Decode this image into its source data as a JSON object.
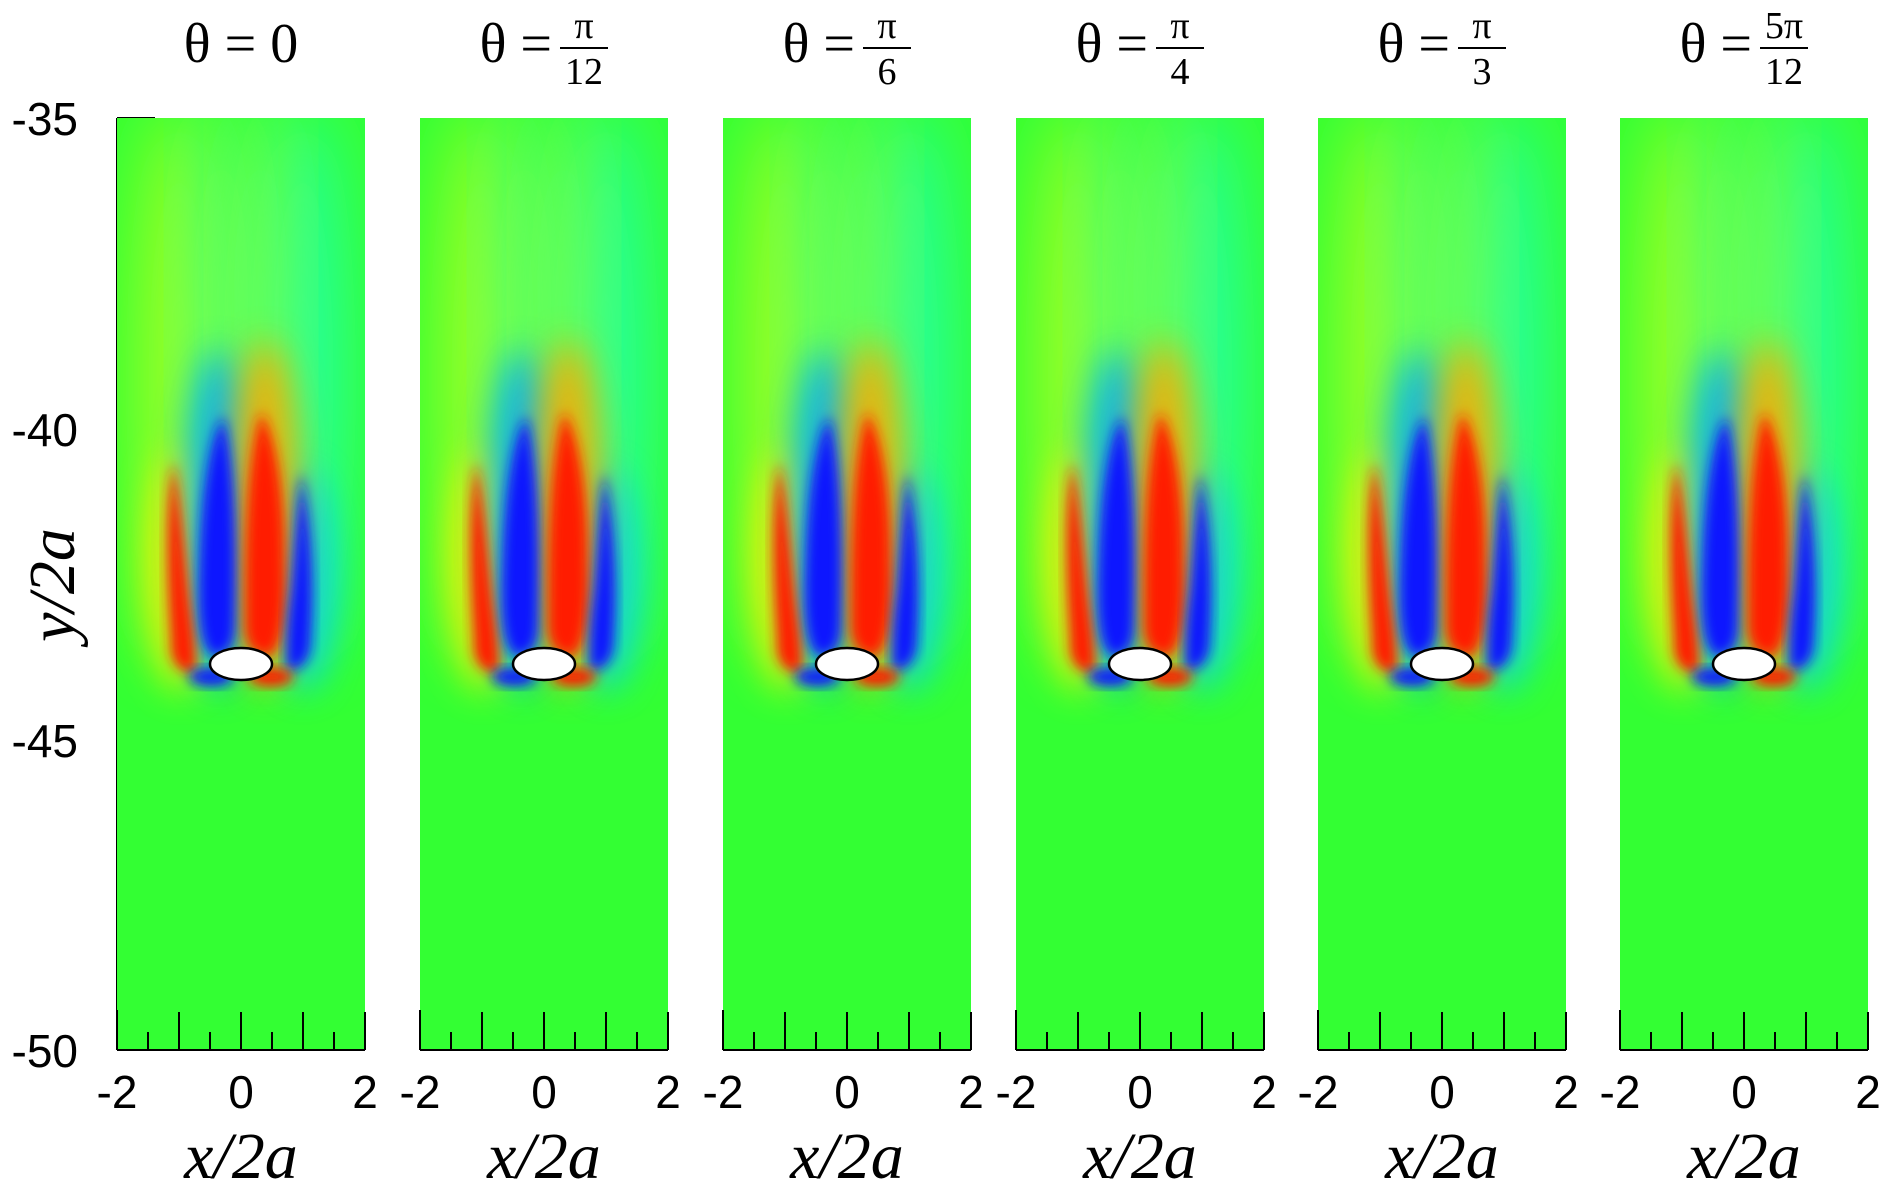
{
  "figure": {
    "y_axis": {
      "label": "y/2a",
      "ticks": [
        "-35",
        "-40",
        "-45",
        "-50"
      ],
      "values": [
        -35,
        -40,
        -45,
        -50
      ],
      "range": [
        -50,
        -35
      ]
    },
    "x_axis": {
      "label": "x/2a",
      "ticks": [
        "-2",
        "0",
        "2"
      ],
      "values": [
        -2,
        0,
        2
      ],
      "range": [
        -2,
        2
      ]
    },
    "panels": [
      {
        "id": "p1",
        "lhs": "θ = ",
        "plain": "0",
        "num": "",
        "den": ""
      },
      {
        "id": "p2",
        "lhs": "θ = ",
        "plain": "",
        "num": "π",
        "den": "12"
      },
      {
        "id": "p3",
        "lhs": "θ = ",
        "plain": "",
        "num": "π",
        "den": "6"
      },
      {
        "id": "p4",
        "lhs": "θ = ",
        "plain": "",
        "num": "π",
        "den": "4"
      },
      {
        "id": "p5",
        "lhs": "θ = ",
        "plain": "",
        "num": "π",
        "den": "3"
      },
      {
        "id": "p6",
        "lhs": "θ = ",
        "plain": "",
        "num": "5π",
        "den": "12"
      }
    ],
    "colors": {
      "background_field": "#33ff33",
      "positive": "#ff1a00",
      "negative": "#0a14ff",
      "mild_positive": "#ccff22",
      "mild_negative": "#22ffcc",
      "body_fill": "#ffffff",
      "body_stroke": "#000000"
    }
  }
}
